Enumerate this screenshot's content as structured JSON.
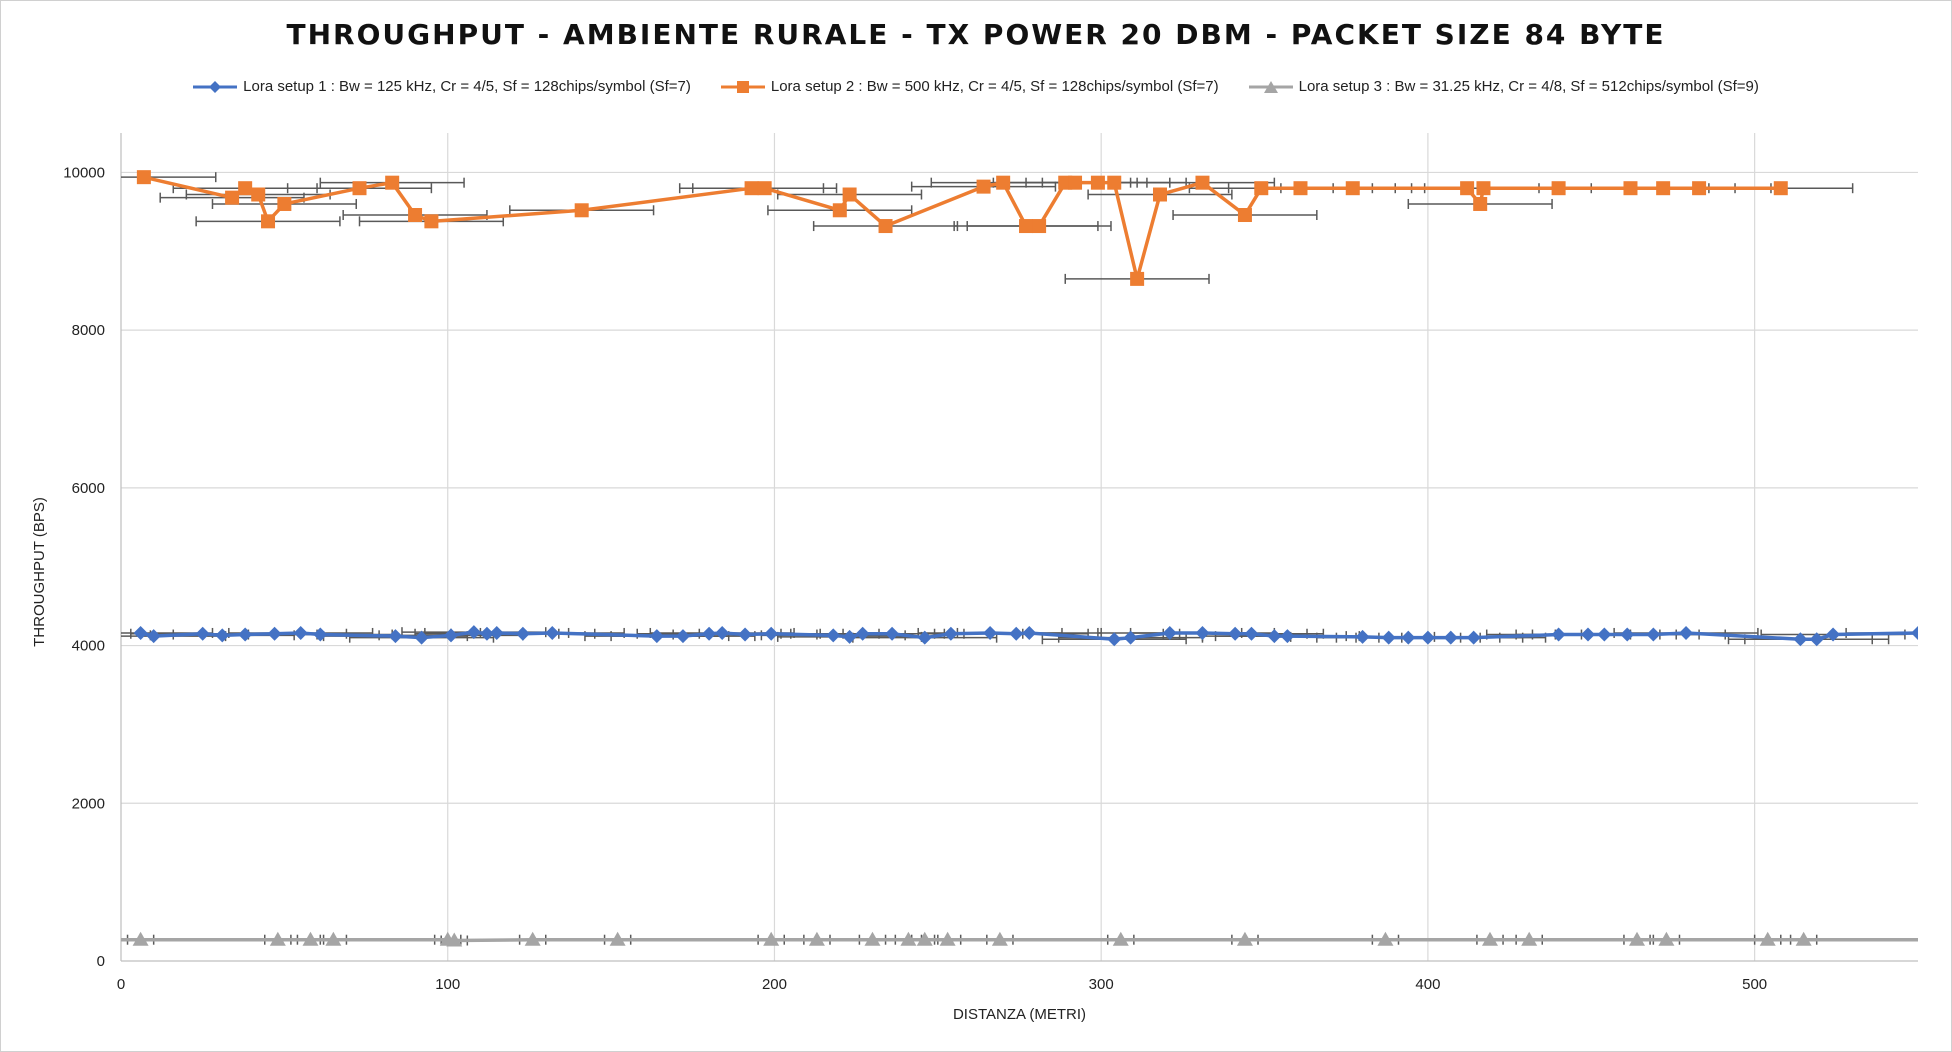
{
  "chart_data": {
    "type": "scatter",
    "title": "THROUGHPUT - AMBIENTE RURALE - TX POWER 20 DBM - PACKET SIZE 84 BYTE",
    "xlabel": "DISTANZA (METRI)",
    "ylabel": "THROUGHPUT (BPS)",
    "xlim": [
      0,
      550
    ],
    "ylim": [
      0,
      10500
    ],
    "x_ticks": [
      0,
      100,
      200,
      300,
      400,
      500
    ],
    "y_ticks": [
      0,
      2000,
      4000,
      6000,
      8000,
      10000
    ],
    "grid": true,
    "legend_position": "top",
    "series": [
      {
        "name": "Lora setup 1 : Bw = 125 kHz, Cr = 4/5, Sf = 128chips/symbol (Sf=7)",
        "color": "#4472C4",
        "marker": "diamond",
        "x_error": 22,
        "points": [
          [
            6,
            4160
          ],
          [
            10,
            4120
          ],
          [
            25,
            4150
          ],
          [
            31,
            4130
          ],
          [
            38,
            4140
          ],
          [
            47,
            4150
          ],
          [
            55,
            4160
          ],
          [
            61,
            4140
          ],
          [
            84,
            4120
          ],
          [
            92,
            4100
          ],
          [
            101,
            4130
          ],
          [
            108,
            4170
          ],
          [
            112,
            4150
          ],
          [
            115,
            4160
          ],
          [
            123,
            4150
          ],
          [
            132,
            4160
          ],
          [
            164,
            4120
          ],
          [
            172,
            4120
          ],
          [
            180,
            4150
          ],
          [
            184,
            4160
          ],
          [
            191,
            4140
          ],
          [
            199,
            4150
          ],
          [
            218,
            4130
          ],
          [
            223,
            4110
          ],
          [
            227,
            4150
          ],
          [
            236,
            4150
          ],
          [
            246,
            4100
          ],
          [
            254,
            4150
          ],
          [
            266,
            4160
          ],
          [
            274,
            4150
          ],
          [
            278,
            4160
          ],
          [
            304,
            4080
          ],
          [
            309,
            4100
          ],
          [
            321,
            4160
          ],
          [
            331,
            4160
          ],
          [
            341,
            4150
          ],
          [
            346,
            4150
          ],
          [
            353,
            4120
          ],
          [
            357,
            4120
          ],
          [
            380,
            4110
          ],
          [
            388,
            4100
          ],
          [
            394,
            4100
          ],
          [
            400,
            4100
          ],
          [
            407,
            4100
          ],
          [
            414,
            4100
          ],
          [
            440,
            4140
          ],
          [
            449,
            4140
          ],
          [
            454,
            4140
          ],
          [
            461,
            4140
          ],
          [
            469,
            4140
          ],
          [
            479,
            4160
          ],
          [
            514,
            4080
          ],
          [
            519,
            4080
          ],
          [
            524,
            4140
          ],
          [
            550,
            4160
          ]
        ]
      },
      {
        "name": "Lora setup 2 : Bw = 500 kHz, Cr = 4/5, Sf = 128chips/symbol (Sf=7)",
        "color": "#ED7D31",
        "marker": "square",
        "x_error": 22,
        "points": [
          [
            7,
            9940
          ],
          [
            34,
            9680
          ],
          [
            38,
            9800
          ],
          [
            42,
            9720
          ],
          [
            45,
            9380
          ],
          [
            50,
            9600
          ],
          [
            73,
            9800
          ],
          [
            83,
            9870
          ],
          [
            90,
            9460
          ],
          [
            95,
            9380
          ],
          [
            141,
            9520
          ],
          [
            193,
            9800
          ],
          [
            197,
            9800
          ],
          [
            220,
            9520
          ],
          [
            223,
            9720
          ],
          [
            234,
            9320
          ],
          [
            264,
            9820
          ],
          [
            270,
            9870
          ],
          [
            277,
            9320
          ],
          [
            281,
            9320
          ],
          [
            289,
            9870
          ],
          [
            292,
            9870
          ],
          [
            299,
            9870
          ],
          [
            304,
            9870
          ],
          [
            311,
            8650
          ],
          [
            318,
            9720
          ],
          [
            331,
            9870
          ],
          [
            344,
            9460
          ],
          [
            349,
            9800
          ],
          [
            361,
            9800
          ],
          [
            377,
            9800
          ],
          [
            412,
            9800
          ],
          [
            416,
            9600
          ],
          [
            417,
            9800
          ],
          [
            440,
            9800
          ],
          [
            462,
            9800
          ],
          [
            472,
            9800
          ],
          [
            483,
            9800
          ],
          [
            508,
            9800
          ]
        ]
      },
      {
        "name": "Lora setup 3 : Bw = 31.25 kHz, Cr = 4/8, Sf = 512chips/symbol (Sf=9)",
        "color": "#A5A5A5",
        "marker": "triangle",
        "x_error": 4,
        "points": [
          [
            6,
            270
          ],
          [
            48,
            270
          ],
          [
            58,
            270
          ],
          [
            65,
            270
          ],
          [
            100,
            270
          ],
          [
            102,
            260
          ],
          [
            126,
            270
          ],
          [
            152,
            270
          ],
          [
            199,
            270
          ],
          [
            213,
            270
          ],
          [
            230,
            270
          ],
          [
            241,
            270
          ],
          [
            246,
            270
          ],
          [
            253,
            270
          ],
          [
            269,
            270
          ],
          [
            306,
            270
          ],
          [
            344,
            270
          ],
          [
            387,
            270
          ],
          [
            419,
            270
          ],
          [
            431,
            270
          ],
          [
            464,
            270
          ],
          [
            473,
            270
          ],
          [
            504,
            270
          ],
          [
            515,
            270
          ]
        ]
      }
    ]
  }
}
